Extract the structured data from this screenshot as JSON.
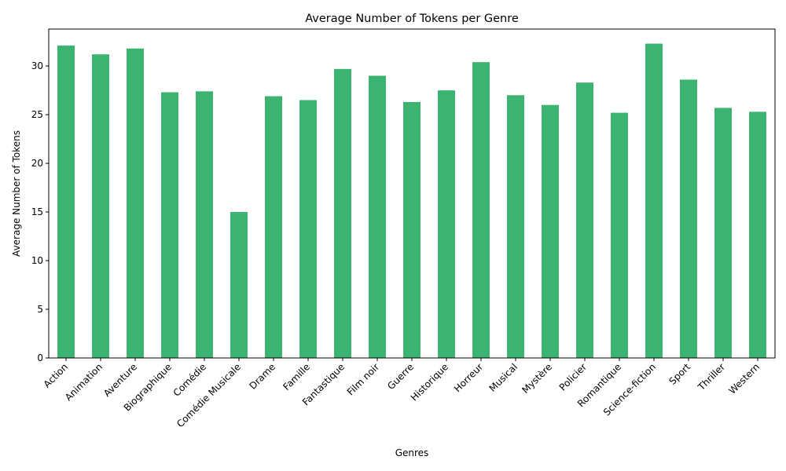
{
  "chart_data": {
    "type": "bar",
    "title": "Average Number of Tokens per Genre",
    "xlabel": "Genres",
    "ylabel": "Average Number of Tokens",
    "ylim": [
      0,
      33.8
    ],
    "yticks": [
      0,
      5,
      10,
      15,
      20,
      25,
      30
    ],
    "grid": false,
    "bar_color": "#3cb371",
    "categories": [
      "Action",
      "Animation",
      "Aventure",
      "Biographique",
      "Comédie",
      "Comédie Musicale",
      "Drame",
      "Famille",
      "Fantastique",
      "Film noir",
      "Guerre",
      "Historique",
      "Horreur",
      "Musical",
      "Mystère",
      "Policier",
      "Romantique",
      "Science-fiction",
      "Sport",
      "Thriller",
      "Western"
    ],
    "values": [
      32.1,
      31.2,
      31.8,
      27.3,
      27.4,
      15.0,
      26.9,
      26.5,
      29.7,
      29.0,
      26.3,
      27.5,
      30.4,
      27.0,
      26.0,
      28.3,
      25.2,
      32.3,
      28.6,
      25.7,
      25.3
    ]
  }
}
